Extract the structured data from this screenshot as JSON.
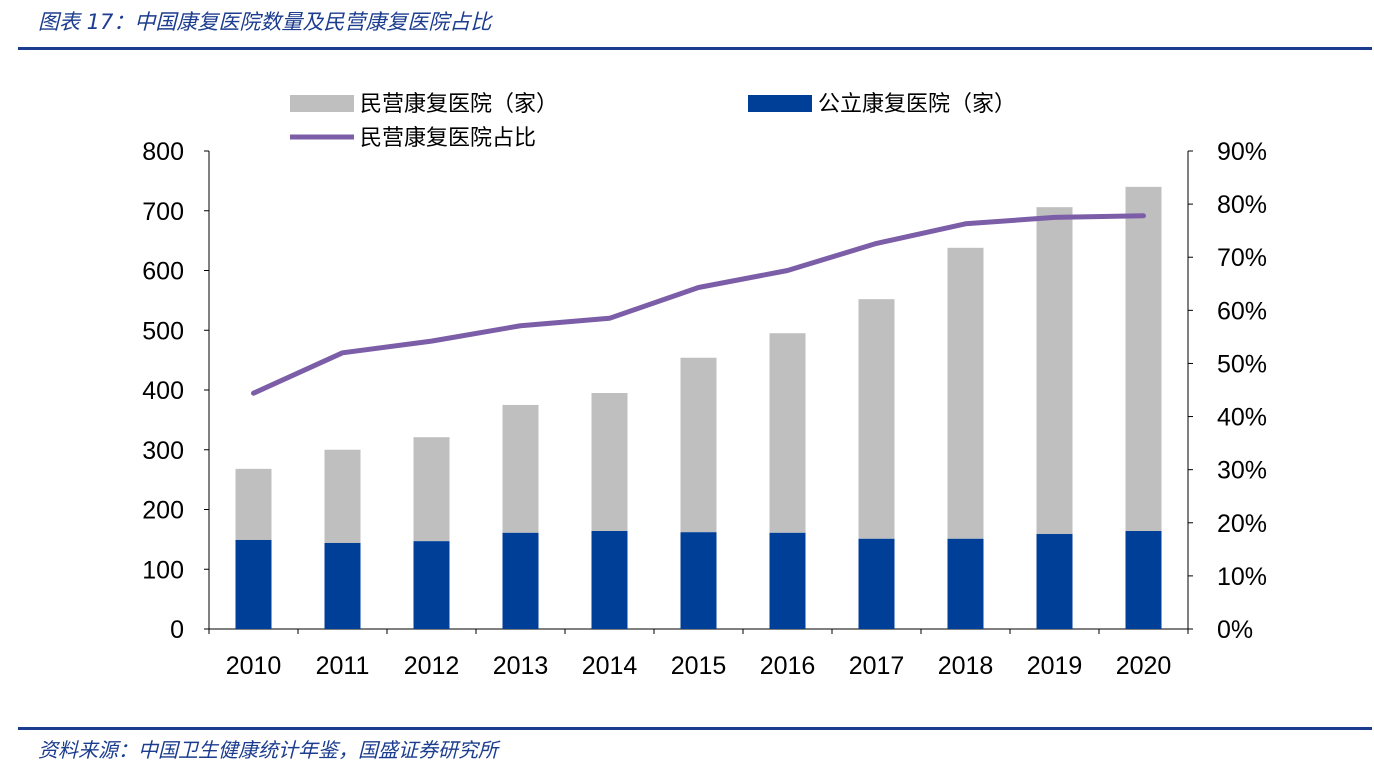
{
  "header": {
    "title": "图表 17：中国康复医院数量及民营康复医院占比"
  },
  "footer": {
    "source": "资料来源：中国卫生健康统计年鉴，国盛证券研究所"
  },
  "chart_data": {
    "type": "bar",
    "stacked": true,
    "categories": [
      "2010",
      "2011",
      "2012",
      "2013",
      "2014",
      "2015",
      "2016",
      "2017",
      "2018",
      "2019",
      "2020"
    ],
    "series": [
      {
        "name": "公立康复医院（家）",
        "type": "bar",
        "axis": "left",
        "color": "#003f98",
        "values": [
          149,
          144,
          147,
          161,
          164,
          162,
          161,
          151,
          151,
          159,
          164
        ]
      },
      {
        "name": "民营康复医院（家）",
        "type": "bar",
        "axis": "left",
        "color": "#bfbfbf",
        "values": [
          119,
          156,
          174,
          214,
          231,
          292,
          334,
          401,
          487,
          547,
          576
        ]
      },
      {
        "name": "民营康复医院占比",
        "type": "line",
        "axis": "right",
        "color": "#7b5ea7",
        "values": [
          44.4,
          52.0,
          54.2,
          57.1,
          58.5,
          64.3,
          67.5,
          72.6,
          76.3,
          77.5,
          77.8
        ]
      }
    ],
    "left_axis": {
      "ylim": [
        0,
        800
      ],
      "ticks": [
        "0",
        "100",
        "200",
        "300",
        "400",
        "500",
        "600",
        "700",
        "800"
      ]
    },
    "right_axis": {
      "ylim": [
        0,
        90
      ],
      "ticks": [
        "0%",
        "10%",
        "20%",
        "30%",
        "40%",
        "50%",
        "60%",
        "70%",
        "80%",
        "90%"
      ]
    },
    "legend_position": "top",
    "grid": false
  }
}
